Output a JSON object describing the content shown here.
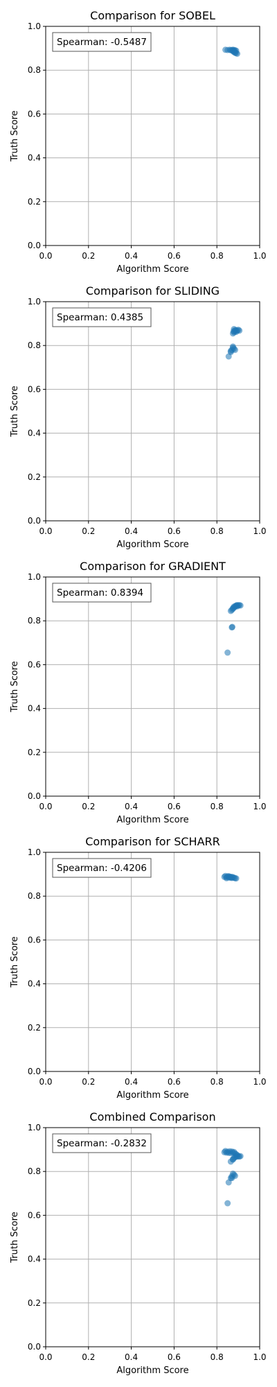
{
  "chart_data": [
    {
      "type": "scatter",
      "title": "Comparison for SOBEL",
      "xlabel": "Algorithm Score",
      "ylabel": "Truth Score",
      "xlim": [
        0,
        1
      ],
      "ylim": [
        0,
        1
      ],
      "grid": true,
      "color": "#1f77b4",
      "annotation": "Spearman: -0.5487",
      "x_ticks": [
        "0.0",
        "0.2",
        "0.4",
        "0.6",
        "0.8",
        "1.0"
      ],
      "y_ticks": [
        "0.0",
        "0.2",
        "0.4",
        "0.6",
        "0.8",
        "1.0"
      ],
      "points": [
        [
          0.84,
          0.893
        ],
        [
          0.85,
          0.892
        ],
        [
          0.86,
          0.893
        ],
        [
          0.865,
          0.891
        ],
        [
          0.87,
          0.892
        ],
        [
          0.875,
          0.893
        ],
        [
          0.88,
          0.892
        ],
        [
          0.885,
          0.891
        ],
        [
          0.89,
          0.889
        ],
        [
          0.88,
          0.886
        ],
        [
          0.875,
          0.888
        ],
        [
          0.885,
          0.882
        ],
        [
          0.89,
          0.878
        ],
        [
          0.895,
          0.875
        ],
        [
          0.885,
          0.879
        ],
        [
          0.878,
          0.884
        ]
      ]
    },
    {
      "type": "scatter",
      "title": "Comparison for SLIDING",
      "xlabel": "Algorithm Score",
      "ylabel": "Truth Score",
      "xlim": [
        0,
        1
      ],
      "ylim": [
        0,
        1
      ],
      "grid": true,
      "color": "#1f77b4",
      "annotation": "Spearman: 0.4385",
      "x_ticks": [
        "0.0",
        "0.2",
        "0.4",
        "0.6",
        "0.8",
        "1.0"
      ],
      "y_ticks": [
        "0.0",
        "0.2",
        "0.4",
        "0.6",
        "0.8",
        "1.0"
      ],
      "points": [
        [
          0.855,
          0.75
        ],
        [
          0.865,
          0.77
        ],
        [
          0.87,
          0.78
        ],
        [
          0.875,
          0.79
        ],
        [
          0.88,
          0.785
        ],
        [
          0.885,
          0.78
        ],
        [
          0.875,
          0.795
        ],
        [
          0.865,
          0.775
        ],
        [
          0.875,
          0.855
        ],
        [
          0.88,
          0.86
        ],
        [
          0.885,
          0.865
        ],
        [
          0.89,
          0.87
        ],
        [
          0.895,
          0.868
        ],
        [
          0.9,
          0.872
        ],
        [
          0.905,
          0.868
        ],
        [
          0.88,
          0.875
        ],
        [
          0.885,
          0.87
        ],
        [
          0.89,
          0.862
        ],
        [
          0.878,
          0.865
        ]
      ]
    },
    {
      "type": "scatter",
      "title": "Comparison for GRADIENT",
      "xlabel": "Algorithm Score",
      "ylabel": "Truth Score",
      "xlim": [
        0,
        1
      ],
      "ylim": [
        0,
        1
      ],
      "grid": true,
      "color": "#1f77b4",
      "annotation": "Spearman: 0.8394",
      "x_ticks": [
        "0.0",
        "0.2",
        "0.4",
        "0.6",
        "0.8",
        "1.0"
      ],
      "y_ticks": [
        "0.0",
        "0.2",
        "0.4",
        "0.6",
        "0.8",
        "1.0"
      ],
      "points": [
        [
          0.85,
          0.655
        ],
        [
          0.87,
          0.77
        ],
        [
          0.872,
          0.772
        ],
        [
          0.865,
          0.845
        ],
        [
          0.87,
          0.85
        ],
        [
          0.875,
          0.855
        ],
        [
          0.88,
          0.86
        ],
        [
          0.885,
          0.865
        ],
        [
          0.89,
          0.87
        ],
        [
          0.895,
          0.872
        ],
        [
          0.9,
          0.87
        ],
        [
          0.905,
          0.872
        ],
        [
          0.91,
          0.87
        ],
        [
          0.88,
          0.865
        ],
        [
          0.875,
          0.858
        ],
        [
          0.89,
          0.868
        ],
        [
          0.895,
          0.866
        ]
      ]
    },
    {
      "type": "scatter",
      "title": "Comparison for SCHARR",
      "xlabel": "Algorithm Score",
      "ylabel": "Truth Score",
      "xlim": [
        0,
        1
      ],
      "ylim": [
        0,
        1
      ],
      "grid": true,
      "color": "#1f77b4",
      "annotation": "Spearman: -0.4206",
      "x_ticks": [
        "0.0",
        "0.2",
        "0.4",
        "0.6",
        "0.8",
        "1.0"
      ],
      "y_ticks": [
        "0.0",
        "0.2",
        "0.4",
        "0.6",
        "0.8",
        "1.0"
      ],
      "points": [
        [
          0.835,
          0.888
        ],
        [
          0.84,
          0.892
        ],
        [
          0.845,
          0.886
        ],
        [
          0.85,
          0.89
        ],
        [
          0.855,
          0.885
        ],
        [
          0.86,
          0.889
        ],
        [
          0.865,
          0.884
        ],
        [
          0.87,
          0.888
        ],
        [
          0.875,
          0.886
        ],
        [
          0.88,
          0.884
        ],
        [
          0.885,
          0.882
        ],
        [
          0.89,
          0.881
        ],
        [
          0.845,
          0.882
        ],
        [
          0.855,
          0.891
        ],
        [
          0.87,
          0.883
        ],
        [
          0.862,
          0.887
        ]
      ]
    },
    {
      "type": "scatter",
      "title": "Combined Comparison",
      "xlabel": "Algorithm Score",
      "ylabel": "Truth Score",
      "xlim": [
        0,
        1
      ],
      "ylim": [
        0,
        1
      ],
      "grid": true,
      "color": "#1f77b4",
      "annotation": "Spearman: -0.2832",
      "x_ticks": [
        "0.0",
        "0.2",
        "0.4",
        "0.6",
        "0.8",
        "1.0"
      ],
      "y_ticks": [
        "0.0",
        "0.2",
        "0.4",
        "0.6",
        "0.8",
        "1.0"
      ],
      "points": [
        [
          0.84,
          0.893
        ],
        [
          0.85,
          0.89
        ],
        [
          0.86,
          0.892
        ],
        [
          0.87,
          0.891
        ],
        [
          0.88,
          0.889
        ],
        [
          0.89,
          0.878
        ],
        [
          0.895,
          0.875
        ],
        [
          0.835,
          0.888
        ],
        [
          0.845,
          0.886
        ],
        [
          0.855,
          0.885
        ],
        [
          0.865,
          0.884
        ],
        [
          0.875,
          0.886
        ],
        [
          0.885,
          0.882
        ],
        [
          0.855,
          0.75
        ],
        [
          0.865,
          0.77
        ],
        [
          0.875,
          0.79
        ],
        [
          0.88,
          0.785
        ],
        [
          0.885,
          0.78
        ],
        [
          0.87,
          0.778
        ],
        [
          0.875,
          0.855
        ],
        [
          0.885,
          0.865
        ],
        [
          0.895,
          0.868
        ],
        [
          0.905,
          0.868
        ],
        [
          0.85,
          0.655
        ],
        [
          0.87,
          0.77
        ],
        [
          0.865,
          0.845
        ],
        [
          0.875,
          0.855
        ],
        [
          0.89,
          0.87
        ],
        [
          0.9,
          0.87
        ],
        [
          0.91,
          0.87
        ],
        [
          0.88,
          0.862
        ]
      ]
    }
  ]
}
